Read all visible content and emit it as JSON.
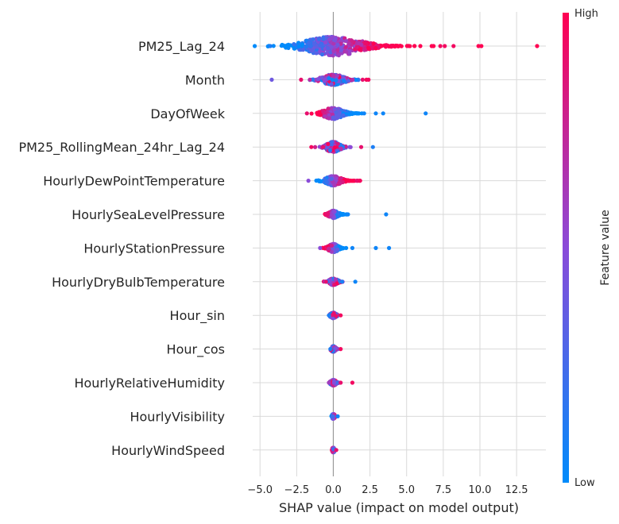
{
  "chart_data": {
    "type": "scatter",
    "title": "",
    "xlabel": "SHAP value (impact on model output)",
    "ylabel": "",
    "xlim": [
      -5.5,
      14.5
    ],
    "x_ticks": [
      -5.0,
      -2.5,
      0.0,
      2.5,
      5.0,
      7.5,
      10.0,
      12.5
    ],
    "x_tick_labels": [
      "−5.0",
      "−2.5",
      "0.0",
      "2.5",
      "5.0",
      "7.5",
      "10.0",
      "12.5"
    ],
    "grid": true,
    "features": [
      {
        "name": "PM25_Lag_24",
        "spread": 2.8,
        "skew": 0.6,
        "width": 1.0,
        "outliers": [
          [
            -4.3,
            0.1
          ],
          [
            7.3,
            0.95
          ],
          [
            7.6,
            0.95
          ],
          [
            8.2,
            0.95
          ],
          [
            9.9,
            1.0
          ],
          [
            10.1,
            1.0
          ],
          [
            13.9,
            1.0
          ]
        ],
        "high_side": "right"
      },
      {
        "name": "Month",
        "spread": 1.0,
        "skew": 0.3,
        "width": 0.55,
        "outliers": [
          [
            -4.2,
            0.4
          ],
          [
            -2.2,
            0.9
          ],
          [
            -1.6,
            0.7
          ],
          [
            2.0,
            0.9
          ],
          [
            2.4,
            0.95
          ]
        ],
        "high_side": "mixed"
      },
      {
        "name": "DayOfWeek",
        "spread": 0.9,
        "skew": 0.5,
        "width": 0.6,
        "outliers": [
          [
            -1.8,
            0.9
          ],
          [
            2.1,
            0.05
          ],
          [
            2.9,
            0.05
          ],
          [
            3.4,
            0.05
          ],
          [
            6.3,
            0.05
          ]
        ],
        "high_side": "left"
      },
      {
        "name": "PM25_RollingMean_24hr_Lag_24",
        "spread": 0.6,
        "skew": 0.3,
        "width": 0.55,
        "outliers": [
          [
            -1.5,
            0.95
          ],
          [
            -0.7,
            0.9
          ],
          [
            1.9,
            0.9
          ],
          [
            2.7,
            0.1
          ]
        ],
        "high_side": "mixed"
      },
      {
        "name": "HourlyDewPointTemperature",
        "spread": 0.7,
        "skew": 0.6,
        "width": 0.5,
        "outliers": [
          [
            -1.7,
            0.5
          ],
          [
            1.6,
            0.9
          ],
          [
            1.8,
            0.95
          ]
        ],
        "high_side": "right"
      },
      {
        "name": "HourlySeaLevelPressure",
        "spread": 0.4,
        "skew": 0.5,
        "width": 0.4,
        "outliers": [
          [
            -0.5,
            0.9
          ],
          [
            1.0,
            0.05
          ],
          [
            3.6,
            0.05
          ]
        ],
        "high_side": "left"
      },
      {
        "name": "HourlyStationPressure",
        "spread": 0.4,
        "skew": 0.4,
        "width": 0.45,
        "outliers": [
          [
            -0.9,
            0.5
          ],
          [
            1.3,
            0.05
          ],
          [
            2.9,
            0.05
          ],
          [
            3.8,
            0.05
          ]
        ],
        "high_side": "left"
      },
      {
        "name": "HourlyDryBulbTemperature",
        "spread": 0.35,
        "skew": 0.2,
        "width": 0.35,
        "outliers": [
          [
            -0.5,
            0.9
          ],
          [
            0.6,
            0.1
          ],
          [
            1.5,
            0.05
          ]
        ],
        "high_side": "mixed"
      },
      {
        "name": "Hour_sin",
        "spread": 0.2,
        "skew": 0.2,
        "width": 0.3,
        "outliers": [
          [
            -0.3,
            0.1
          ],
          [
            0.5,
            0.95
          ]
        ],
        "high_side": "mixed"
      },
      {
        "name": "Hour_cos",
        "spread": 0.15,
        "skew": 0.2,
        "width": 0.3,
        "outliers": [
          [
            -0.2,
            0.1
          ],
          [
            0.5,
            0.95
          ]
        ],
        "high_side": "mixed"
      },
      {
        "name": "HourlyRelativeHumidity",
        "spread": 0.2,
        "skew": 0.3,
        "width": 0.3,
        "outliers": [
          [
            -0.3,
            0.6
          ],
          [
            0.5,
            0.9
          ],
          [
            1.3,
            0.95
          ]
        ],
        "high_side": "mixed"
      },
      {
        "name": "HourlyVisibility",
        "spread": 0.08,
        "skew": 0.1,
        "width": 0.25,
        "outliers": [
          [
            0.3,
            0.05
          ]
        ],
        "high_side": "right"
      },
      {
        "name": "HourlyWindSpeed",
        "spread": 0.06,
        "skew": 0.0,
        "width": 0.25,
        "outliers": [
          [
            0.2,
            0.9
          ]
        ],
        "high_side": "left"
      }
    ],
    "colorbar": {
      "title": "Feature value",
      "high_label": "High",
      "low_label": "Low",
      "low_color": "#008bfb",
      "high_color": "#ff0052",
      "mid_color": "#8a4bd9"
    }
  }
}
